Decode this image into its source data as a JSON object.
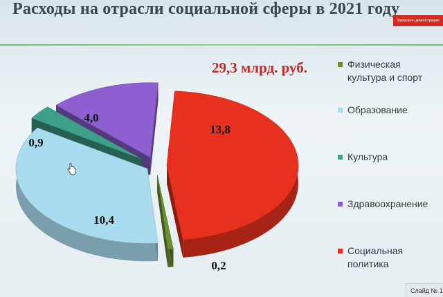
{
  "header": {
    "title": "Расходы на отрасли социальной сферы в 2021 году",
    "demo_button_label": "Завершить демонстрацию"
  },
  "footer": {
    "slide_label": "Слайд № 1"
  },
  "chart_data": {
    "type": "pie",
    "title": "Расходы на отрасли социальной сферы в 2021 году",
    "annotation": "29,3 млрд. руб.",
    "style": "3d-exploded",
    "legend_position": "right",
    "slices": [
      {
        "name": "Физическая культура и спорт",
        "value": 0.2,
        "label": "0,2",
        "color": "#6a8f2e"
      },
      {
        "name": "Образование",
        "value": 10.4,
        "label": "10,4",
        "color": "#a9dcef"
      },
      {
        "name": "Культура",
        "value": 0.9,
        "label": "0,9",
        "color": "#3fa08a"
      },
      {
        "name": "Здравоохранение",
        "value": 4.0,
        "label": "4,0",
        "color": "#8d5fd0"
      },
      {
        "name": "Социальная политика",
        "value": 13.8,
        "label": "13,8",
        "color": "#e8301e"
      }
    ]
  }
}
